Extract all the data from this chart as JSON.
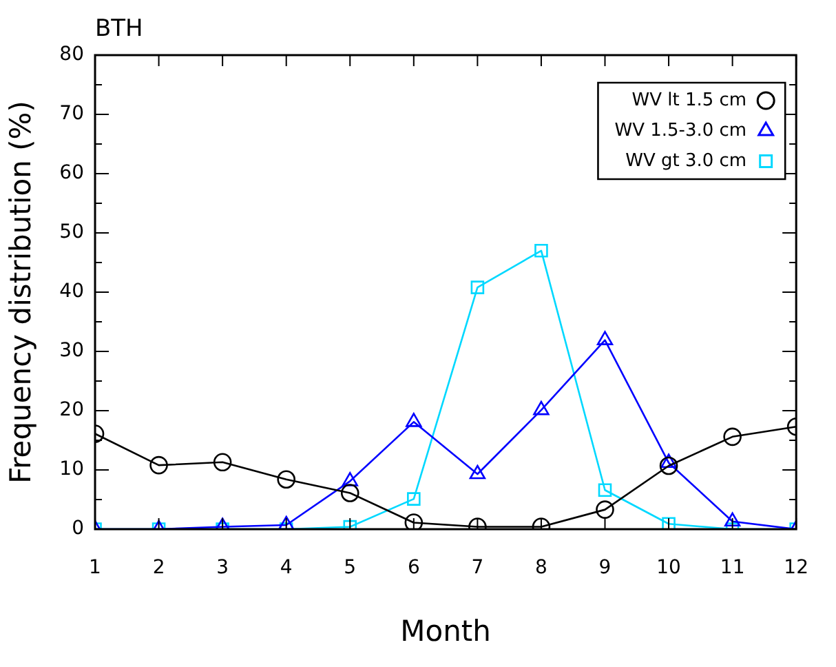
{
  "chart_data": {
    "type": "line",
    "title": "BTH",
    "xlabel": "Month",
    "ylabel": "Frequency distribution (%)",
    "x": [
      1,
      2,
      3,
      4,
      5,
      6,
      7,
      8,
      9,
      10,
      11,
      12
    ],
    "series": [
      {
        "name": "WV lt 1.5 cm",
        "color": "#000000",
        "marker": "circle",
        "values": [
          16.1,
          10.8,
          11.3,
          8.4,
          6.1,
          1.1,
          0.4,
          0.4,
          3.3,
          10.7,
          15.6,
          17.3
        ]
      },
      {
        "name": "WV 1.5-3.0 cm",
        "color": "#0000ff",
        "marker": "triangle",
        "values": [
          0,
          0,
          0.4,
          0.7,
          8.1,
          18.1,
          9.3,
          20.1,
          31.9,
          11.2,
          1.3,
          0
        ]
      },
      {
        "name": "WV gt 3.0 cm",
        "color": "#00d8ff",
        "marker": "square",
        "values": [
          0,
          0,
          0,
          0,
          0.4,
          5.1,
          40.8,
          47.0,
          6.6,
          0.9,
          0,
          0
        ]
      }
    ],
    "xlim": [
      1,
      12
    ],
    "xticks": [
      1,
      2,
      3,
      4,
      5,
      6,
      7,
      8,
      9,
      10,
      11,
      12
    ],
    "ylim": [
      0,
      80
    ],
    "yticks": [
      0,
      10,
      20,
      30,
      40,
      50,
      60,
      70,
      80
    ],
    "legend": "top right",
    "grid": false
  }
}
